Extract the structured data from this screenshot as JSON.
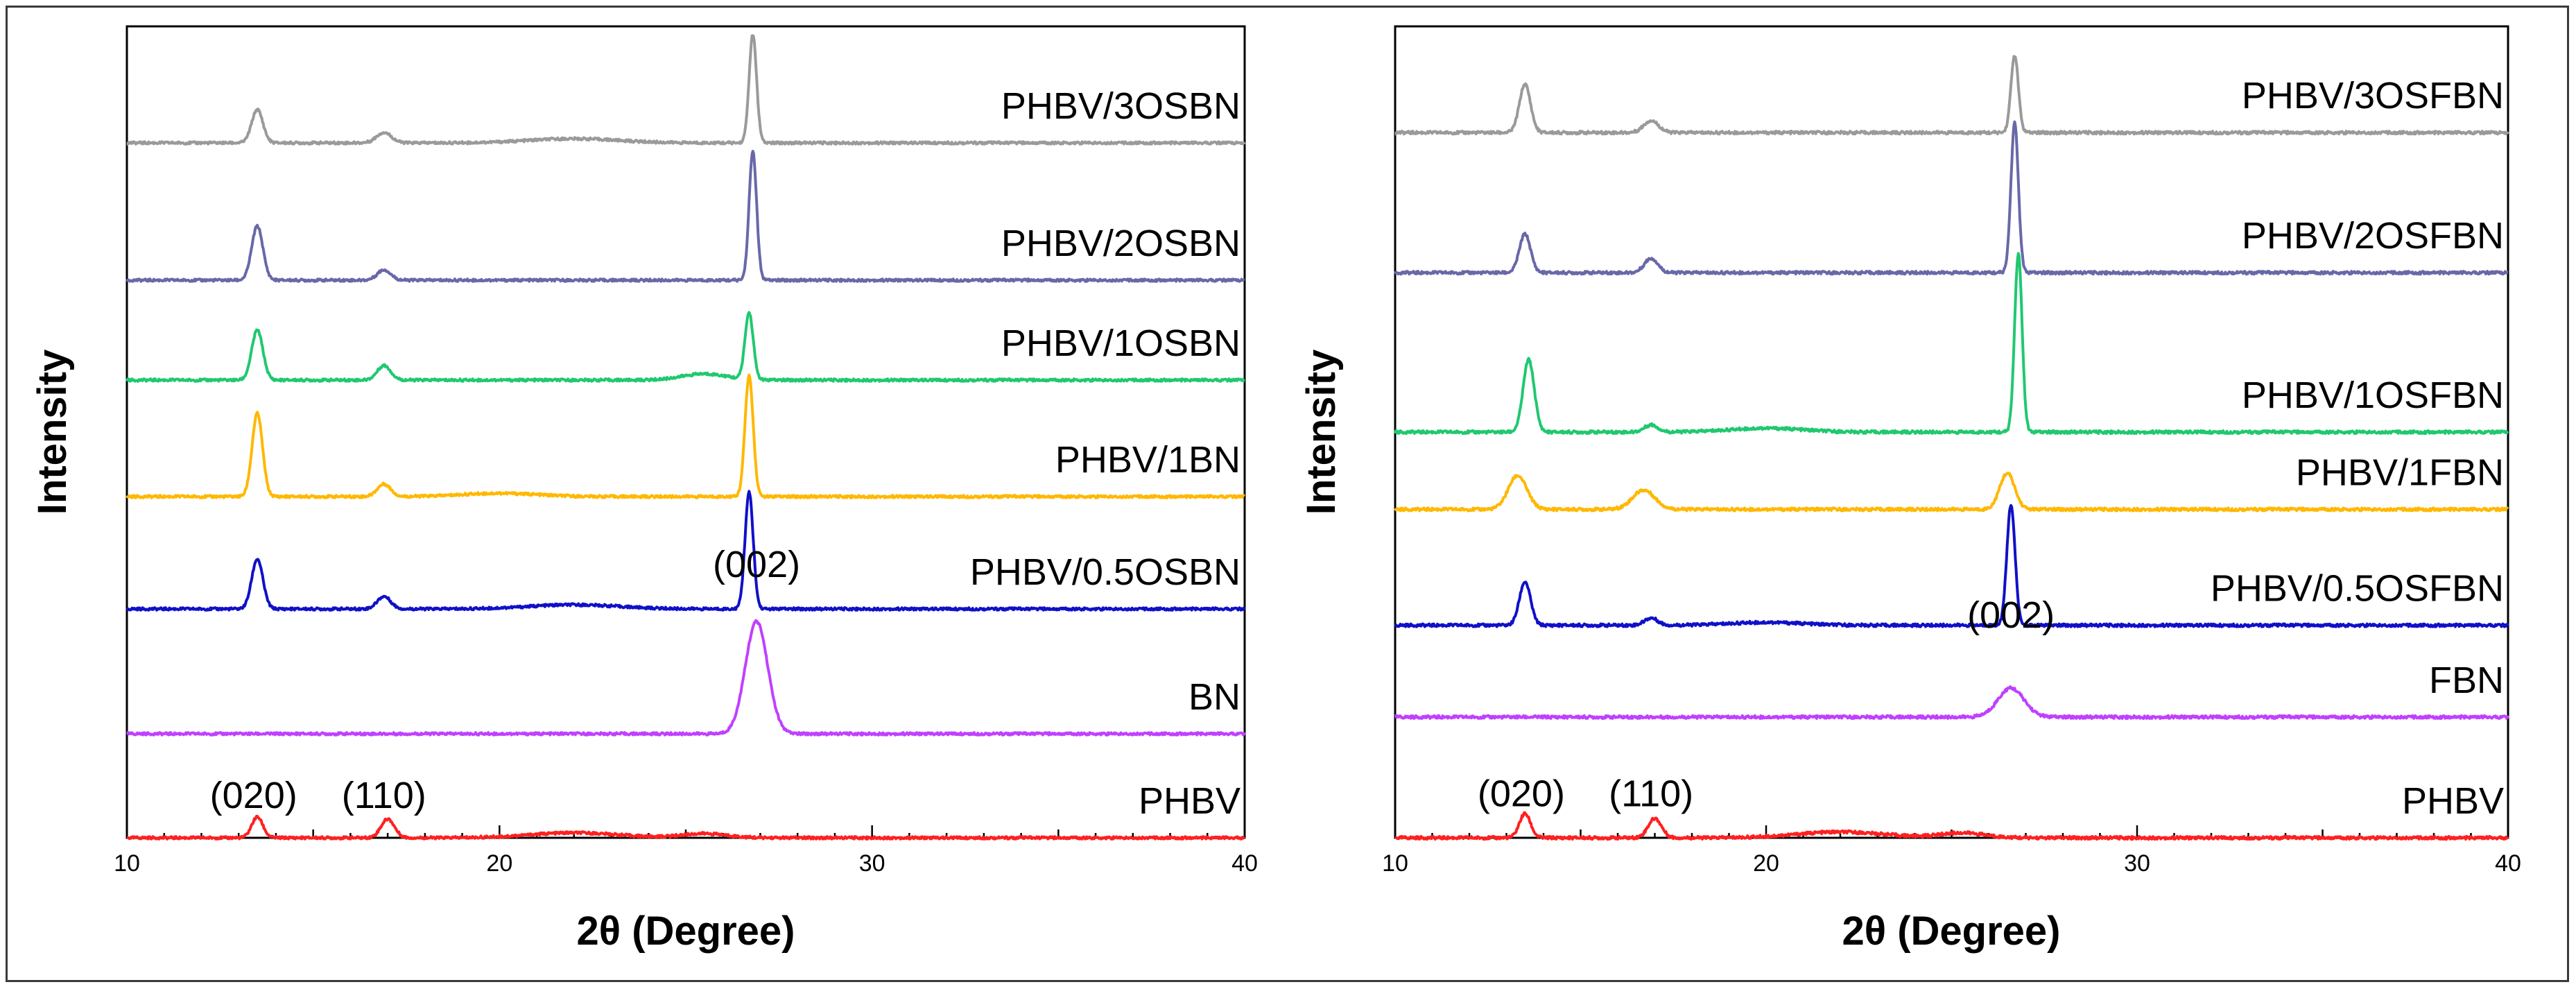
{
  "chart_data": [
    {
      "type": "line",
      "title": "",
      "xlabel": "2θ (Degree)",
      "ylabel": "Intensity",
      "xlim": [
        10,
        40
      ],
      "xticks": [
        10,
        20,
        30,
        40
      ],
      "xtick_labels": [
        "10",
        "20",
        "30",
        "40"
      ],
      "yticks": false,
      "grid": false,
      "annotations": [
        {
          "text": "(002)",
          "x": 26.9,
          "y": 5.8
        },
        {
          "text": "(020)",
          "x": 13.4,
          "y": 0.25
        },
        {
          "text": "(110)",
          "x": 16.9,
          "y": 0.25
        }
      ],
      "series": [
        {
          "name": "PHBV",
          "label": "PHBV",
          "color": "#ff2020",
          "offset": 0.0,
          "peaks": [
            [
              13.5,
              0.5,
              0.15
            ],
            [
              17.0,
              0.45,
              0.18
            ],
            [
              22.0,
              0.12,
              1.2
            ],
            [
              25.5,
              0.1,
              0.6
            ]
          ]
        },
        {
          "name": "BN",
          "label": "BN",
          "color": "#c040ff",
          "offset": 2.5,
          "peaks": [
            [
              26.9,
              2.7,
              0.3
            ]
          ]
        },
        {
          "name": "PHBV/0.5OSBN",
          "label": "PHBV/0.5OSBN",
          "color": "#1010c8",
          "offset": 5.5,
          "peaks": [
            [
              13.5,
              1.2,
              0.15
            ],
            [
              16.9,
              0.3,
              0.18
            ],
            [
              22.0,
              0.1,
              1.2
            ],
            [
              26.7,
              2.8,
              0.11
            ]
          ]
        },
        {
          "name": "PHBV/1BN",
          "label": "PHBV/1BN",
          "color": "#ffb800",
          "offset": 8.2,
          "peaks": [
            [
              13.5,
              2.0,
              0.14
            ],
            [
              16.9,
              0.3,
              0.18
            ],
            [
              20.0,
              0.08,
              1.0
            ],
            [
              26.7,
              2.9,
              0.11
            ]
          ]
        },
        {
          "name": "PHBV/1OSBN",
          "label": "PHBV/1OSBN",
          "color": "#20c870",
          "offset": 11.0,
          "peaks": [
            [
              13.5,
              1.2,
              0.15
            ],
            [
              16.9,
              0.35,
              0.18
            ],
            [
              25.5,
              0.15,
              0.6
            ],
            [
              26.7,
              1.6,
              0.11
            ]
          ]
        },
        {
          "name": "PHBV/2OSBN",
          "label": "PHBV/2OSBN",
          "color": "#6868a8",
          "offset": 13.4,
          "peaks": [
            [
              13.5,
              1.3,
              0.15
            ],
            [
              16.9,
              0.25,
              0.18
            ],
            [
              26.8,
              3.1,
              0.1
            ]
          ]
        },
        {
          "name": "PHBV/3OSBN",
          "label": "PHBV/3OSBN",
          "color": "#9a9a9a",
          "offset": 16.7,
          "peaks": [
            [
              13.5,
              0.8,
              0.15
            ],
            [
              16.9,
              0.25,
              0.2
            ],
            [
              22.0,
              0.1,
              1.2
            ],
            [
              26.8,
              2.6,
              0.1
            ]
          ]
        }
      ]
    },
    {
      "type": "line",
      "title": "",
      "xlabel": "2θ (Degree)",
      "ylabel": "Intensity",
      "xlim": [
        10,
        40
      ],
      "xticks": [
        10,
        20,
        30,
        40
      ],
      "xtick_labels": [
        "10",
        "20",
        "30",
        "40"
      ],
      "yticks": false,
      "grid": false,
      "annotations": [
        {
          "text": "(002)",
          "x": 26.6,
          "y": 3.95
        },
        {
          "text": "(020)",
          "x": 13.4,
          "y": 0.25
        },
        {
          "text": "(110)",
          "x": 16.9,
          "y": 0.25
        }
      ],
      "series": [
        {
          "name": "PHBV",
          "label": "PHBV",
          "color": "#ff2020",
          "offset": 0.0,
          "peaks": [
            [
              13.5,
              0.5,
              0.15
            ],
            [
              17.0,
              0.4,
              0.18
            ],
            [
              22.0,
              0.12,
              1.2
            ],
            [
              25.3,
              0.1,
              0.6
            ]
          ]
        },
        {
          "name": "FBN",
          "label": "FBN",
          "color": "#c040ff",
          "offset": 2.5,
          "peaks": [
            [
              26.6,
              0.6,
              0.35
            ]
          ]
        },
        {
          "name": "PHBV/0.5OSFBN",
          "label": "PHBV/0.5OSFBN",
          "color": "#1010c8",
          "offset": 4.4,
          "peaks": [
            [
              13.5,
              0.9,
              0.15
            ],
            [
              16.9,
              0.15,
              0.18
            ],
            [
              20.0,
              0.06,
              1.0
            ],
            [
              26.6,
              2.5,
              0.11
            ]
          ]
        },
        {
          "name": "PHBV/1FBN",
          "label": "PHBV/1FBN",
          "color": "#ffb800",
          "offset": 6.8,
          "peaks": [
            [
              13.3,
              0.7,
              0.25
            ],
            [
              16.7,
              0.4,
              0.3
            ],
            [
              26.5,
              0.75,
              0.2
            ]
          ]
        },
        {
          "name": "PHBV/1OSFBN",
          "label": "PHBV/1OSFBN",
          "color": "#20c870",
          "offset": 8.4,
          "peaks": [
            [
              13.6,
              1.5,
              0.15
            ],
            [
              16.9,
              0.15,
              0.18
            ],
            [
              20.0,
              0.08,
              1.0
            ],
            [
              26.8,
              3.7,
              0.1
            ]
          ]
        },
        {
          "name": "PHBV/2OSFBN",
          "label": "PHBV/2OSFBN",
          "color": "#6868a8",
          "offset": 11.7,
          "peaks": [
            [
              13.5,
              0.8,
              0.15
            ],
            [
              16.9,
              0.3,
              0.18
            ],
            [
              26.7,
              3.1,
              0.1
            ]
          ]
        },
        {
          "name": "PHBV/3OSFBN",
          "label": "PHBV/3OSFBN",
          "color": "#9a9a9a",
          "offset": 14.6,
          "peaks": [
            [
              13.5,
              1.0,
              0.15
            ],
            [
              16.9,
              0.25,
              0.2
            ],
            [
              26.7,
              1.6,
              0.1
            ]
          ]
        }
      ]
    }
  ]
}
